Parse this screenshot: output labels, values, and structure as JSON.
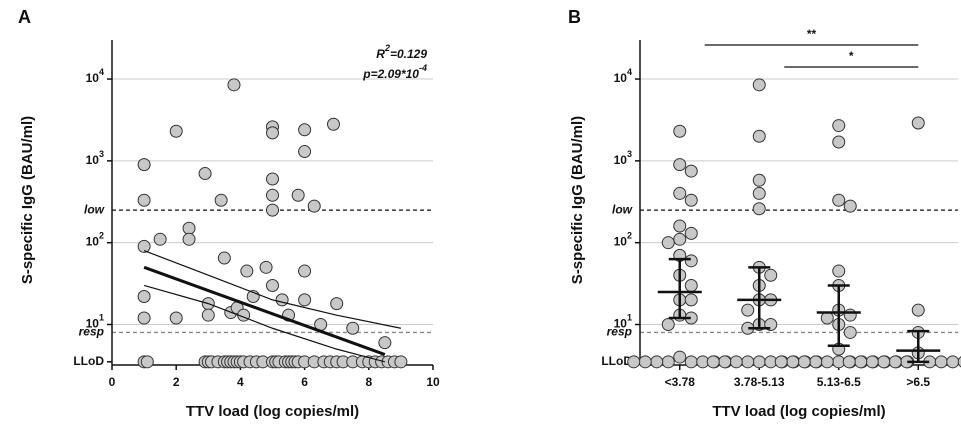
{
  "chart_data": [
    {
      "type": "scatter",
      "panel": "A",
      "xlabel": "TTV load (log copies/ml)",
      "ylabel": "S-specific IgG (BAU/ml)",
      "xlim": [
        0,
        10
      ],
      "xticks": [
        0,
        2,
        4,
        6,
        8,
        10
      ],
      "ylim": [
        3.2,
        30000
      ],
      "log_y": true,
      "grid": true,
      "yticks": [
        {
          "value": 3.5,
          "label": "LLoD"
        },
        {
          "value": 10,
          "label": [
            "10",
            "1"
          ]
        },
        {
          "value": 100,
          "label": [
            "10",
            "2"
          ]
        },
        {
          "value": 1000,
          "label": [
            "10",
            "3"
          ]
        },
        {
          "value": 10000,
          "label": [
            "10",
            "4"
          ]
        }
      ],
      "thresholds": [
        {
          "name": "low",
          "value": 250,
          "color": "#111"
        },
        {
          "name": "resp",
          "value": 8,
          "color": "#888"
        }
      ],
      "annotations": {
        "r2": [
          "R",
          "2",
          "=0.129"
        ],
        "p": [
          "p=2.09*10",
          "-4"
        ]
      },
      "marker_color": "#c8c8c8",
      "x": [
        1.0,
        1.0,
        1.0,
        1.0,
        1.0,
        1.5,
        2.0,
        2.0,
        2.4,
        2.4,
        2.9,
        3.4,
        3.0,
        3.0,
        3.5,
        3.7,
        3.8,
        3.9,
        4.1,
        4.2,
        4.4,
        4.8,
        5.0,
        5.0,
        5.0,
        5.0,
        5.0,
        5.0,
        5.3,
        5.5,
        5.8,
        6.0,
        6.0,
        6.0,
        6.0,
        6.3,
        6.5,
        6.9,
        7.0,
        7.5,
        8.5,
        1.0,
        1.1,
        2.9,
        3.0,
        3.1,
        3.3,
        3.5,
        3.6,
        3.7,
        3.8,
        3.9,
        4.0,
        4.1,
        4.3,
        4.5,
        4.7,
        5.0,
        5.1,
        5.2,
        5.4,
        5.5,
        5.6,
        5.7,
        5.8,
        6.0,
        6.3,
        6.6,
        6.8,
        7.0,
        7.2,
        7.5,
        7.8,
        8.0,
        8.2,
        8.4,
        8.6,
        8.8,
        9.0
      ],
      "values": [
        900,
        330,
        90,
        22,
        12,
        110,
        2300,
        12,
        150,
        110,
        700,
        330,
        18,
        13,
        65,
        14,
        8500,
        16,
        13,
        45,
        22,
        50,
        2600,
        2200,
        600,
        380,
        250,
        30,
        20,
        13,
        380,
        2400,
        1300,
        45,
        20,
        280,
        10,
        2800,
        18,
        9,
        6,
        3.5,
        3.5,
        3.5,
        3.5,
        3.5,
        3.5,
        3.5,
        3.5,
        3.5,
        3.5,
        3.5,
        3.5,
        3.5,
        3.5,
        3.5,
        3.5,
        3.5,
        3.5,
        3.5,
        3.5,
        3.5,
        3.5,
        3.5,
        3.5,
        3.5,
        3.5,
        3.5,
        3.5,
        3.5,
        3.5,
        3.5,
        3.5,
        3.5,
        3.5,
        3.5,
        3.5,
        3.5,
        3.5
      ],
      "fit": {
        "x": [
          1,
          8.5
        ],
        "values": [
          50,
          4.3
        ]
      },
      "ci_upper": {
        "x": [
          1,
          3,
          5,
          7,
          9
        ],
        "values": [
          80,
          40,
          20,
          13,
          9
        ]
      },
      "ci_lower": {
        "x": [
          1,
          3,
          5,
          7,
          8.5
        ],
        "values": [
          30,
          18,
          9,
          5,
          3.5
        ]
      }
    },
    {
      "type": "dotplot",
      "panel": "B",
      "xlabel": "TTV load (log copies/ml)",
      "ylabel": "S-specific IgG (BAU/ml)",
      "categories": [
        "<3.78",
        "3.78-5.13",
        "5.13-6.5",
        ">6.5"
      ],
      "ylim": [
        3.2,
        30000
      ],
      "log_y": true,
      "grid": true,
      "yticks": [
        {
          "value": 3.5,
          "label": "LLoD"
        },
        {
          "value": 10,
          "label": [
            "10",
            "1"
          ]
        },
        {
          "value": 100,
          "label": [
            "10",
            "2"
          ]
        },
        {
          "value": 1000,
          "label": [
            "10",
            "3"
          ]
        },
        {
          "value": 10000,
          "label": [
            "10",
            "4"
          ]
        }
      ],
      "thresholds": [
        {
          "name": "low",
          "value": 250,
          "color": "#111"
        },
        {
          "name": "resp",
          "value": 8,
          "color": "#888"
        }
      ],
      "marker_color": "#c8c8c8",
      "groups": [
        {
          "values": [
            2300,
            900,
            750,
            400,
            330,
            160,
            130,
            110,
            100,
            70,
            60,
            40,
            30,
            20,
            20,
            13,
            12,
            10,
            4,
            3.5,
            3.5,
            3.5,
            3.5,
            3.5,
            3.5,
            3.5,
            3.5
          ],
          "median": 25,
          "error": [
            12,
            63
          ]
        },
        {
          "values": [
            8500,
            2000,
            580,
            400,
            260,
            50,
            40,
            30,
            20,
            20,
            15,
            10,
            10,
            9,
            3.5,
            3.5,
            3.5,
            3.5,
            3.5,
            3.5,
            3.5,
            3.5,
            3.5,
            3.5
          ],
          "median": 20,
          "error": [
            9,
            50
          ]
        },
        {
          "values": [
            2700,
            1700,
            330,
            280,
            45,
            30,
            15,
            13,
            12,
            10,
            8,
            5,
            3.5,
            3.5,
            3.5,
            3.5,
            3.5,
            3.5,
            3.5,
            3.5,
            3.5,
            3.5,
            3.5,
            3.5
          ],
          "median": 14,
          "error": [
            5.5,
            30
          ]
        },
        {
          "values": [
            2900,
            15,
            8,
            4.5,
            3.5,
            3.5,
            3.5,
            3.5,
            3.5,
            3.5,
            3.5,
            3.5,
            3.5,
            3.5,
            3.5,
            3.5
          ],
          "median": 4.8,
          "error": [
            3.5,
            8.3
          ]
        }
      ],
      "significance": [
        {
          "from": 0,
          "to": 3,
          "label": "**"
        },
        {
          "from": 1,
          "to": 3,
          "label": "*"
        }
      ]
    }
  ]
}
